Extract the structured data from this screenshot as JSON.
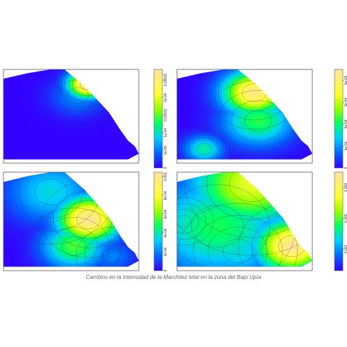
{
  "caption": "Cambios en la intensidad de la Marchitez letal en la zona del Bajo Upía",
  "chart_data": [
    {
      "type": "heatmap",
      "position": "top-left",
      "colorbar_ticks": [
        "0",
        "5e-05",
        "1e-04",
        "0.00015",
        "2e-04",
        "0.00025"
      ],
      "colorbar_range": [
        0,
        0.00028
      ],
      "hotspots": [
        {
          "x": 0.62,
          "y": 0.16,
          "value": 0.00028,
          "spread": 0.1
        },
        {
          "x": 0.55,
          "y": 0.28,
          "value": 6e-05,
          "spread": 0.14
        }
      ]
    },
    {
      "type": "heatmap",
      "position": "top-right",
      "colorbar_ticks": [
        "0",
        "1e-04",
        "2e-04",
        "3e-04",
        "4e-04"
      ],
      "colorbar_range": [
        0,
        0.00045
      ],
      "hotspots": [
        {
          "x": 0.57,
          "y": 0.25,
          "value": 0.00042,
          "spread": 0.16
        },
        {
          "x": 0.6,
          "y": 0.55,
          "value": 0.00022,
          "spread": 0.18
        },
        {
          "x": 0.2,
          "y": 0.85,
          "value": 0.00018,
          "spread": 0.1
        }
      ]
    },
    {
      "type": "heatmap",
      "position": "bottom-left",
      "colorbar_ticks": [
        "0",
        "2e-04",
        "4e-04",
        "6e-04",
        "8e-04",
        "0.001"
      ],
      "colorbar_range": [
        0,
        0.00105
      ],
      "hotspots": [
        {
          "x": 0.63,
          "y": 0.48,
          "value": 0.00102,
          "spread": 0.16
        },
        {
          "x": 0.52,
          "y": 0.75,
          "value": 0.00055,
          "spread": 0.16
        },
        {
          "x": 0.35,
          "y": 0.2,
          "value": 0.00035,
          "spread": 0.22
        },
        {
          "x": 0.8,
          "y": 0.85,
          "value": 0.0002,
          "spread": 0.12
        }
      ]
    },
    {
      "type": "heatmap",
      "position": "bottom-right",
      "colorbar_ticks": [
        "0.001",
        "0.002",
        "0.003"
      ],
      "colorbar_range": [
        0.0003,
        0.0035
      ],
      "hotspots": [
        {
          "x": 0.85,
          "y": 0.75,
          "value": 0.0034,
          "spread": 0.18
        },
        {
          "x": 0.55,
          "y": 0.12,
          "value": 0.0026,
          "spread": 0.3
        },
        {
          "x": 0.3,
          "y": 0.55,
          "value": 0.0018,
          "spread": 0.35
        },
        {
          "x": 0.05,
          "y": 0.5,
          "value": 0.0005,
          "spread": 0.1
        },
        {
          "x": 0.45,
          "y": 0.8,
          "value": 0.0014,
          "spread": 0.2
        }
      ]
    }
  ]
}
